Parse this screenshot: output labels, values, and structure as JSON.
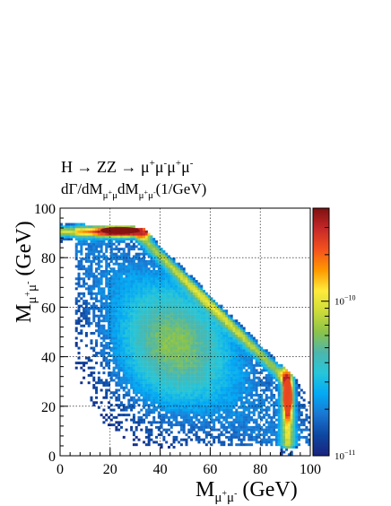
{
  "chart_data": {
    "type": "heatmap",
    "title": "H → ZZ → μ⁺μ⁻μ⁺μ⁻",
    "title_parts": {
      "lead": "H → ZZ → ",
      "mu": "μ",
      "plus": "+",
      "minus": "-"
    },
    "subtitle_parts": {
      "lead": "dΓ/dM",
      "mid": "dM",
      "tail": "(1/GeV)"
    },
    "xlabel_parts": {
      "lead": "M",
      "tail": " (GeV)"
    },
    "ylabel_parts": {
      "lead": "M",
      "tail": " (GeV)"
    },
    "subscript": {
      "mu": "μ",
      "plus": "+",
      "minus": "-"
    },
    "xlim": [
      0,
      100
    ],
    "ylim": [
      0,
      100
    ],
    "x_ticks": [
      0,
      20,
      40,
      60,
      80,
      100
    ],
    "y_ticks": [
      0,
      20,
      40,
      60,
      80,
      100
    ],
    "grid": true,
    "colorbar": {
      "scale": "log",
      "range": [
        1e-11,
        4e-10
      ],
      "tick_labels": [
        {
          "value": 1e-11,
          "base": "10",
          "exp": "−11"
        },
        {
          "value": 1e-10,
          "base": "10",
          "exp": "−10"
        }
      ],
      "colors": [
        "#1a237e",
        "#0d47a1",
        "#1976d2",
        "#03a9f4",
        "#26c6da",
        "#4db6ac",
        "#8bc34a",
        "#cddc39",
        "#ffeb3b",
        "#ff9800",
        "#f4511e",
        "#c62828",
        "#7f1010"
      ]
    },
    "hot_spots": [
      {
        "x": 24,
        "y": 91,
        "level": 1.0
      },
      {
        "x": 91,
        "y": 24,
        "level": 0.85
      }
    ]
  }
}
